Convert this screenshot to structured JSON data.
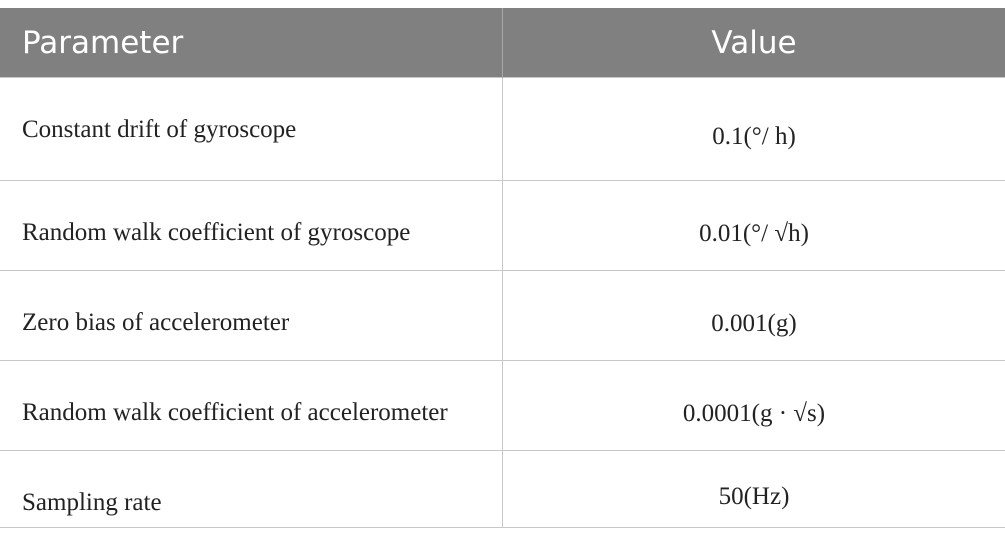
{
  "table": {
    "header": [
      "Parameter",
      "Value"
    ],
    "rows": [
      [
        "Constant drift of gyroscope",
        "0.1(°/ h)"
      ],
      [
        "Random walk coefficient of gyroscope",
        "0.01(°/ √h)"
      ],
      [
        "Zero bias of accelerometer",
        "0.001(g)"
      ],
      [
        "Random walk coefficient of accelerometer",
        "0.0001(g · √s)"
      ],
      [
        "Sampling rate",
        "50(Hz)"
      ]
    ]
  }
}
